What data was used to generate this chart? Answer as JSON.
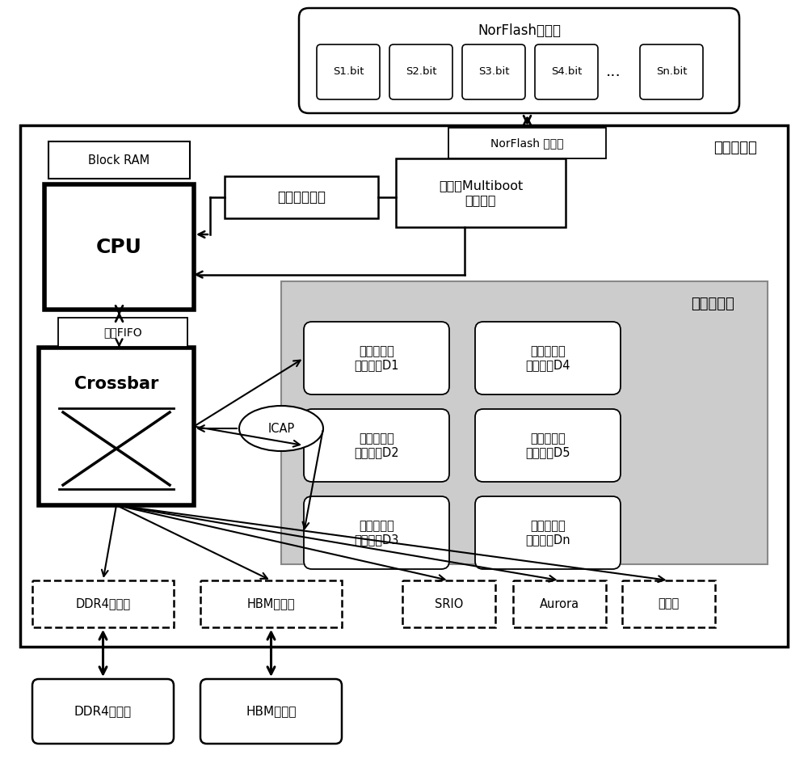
{
  "bg_color": "#ffffff",
  "norflash_storage_label": "NorFlash存储器",
  "norflash_items": [
    "S1.bit",
    "S2.bit",
    "S3.bit",
    "S4.bit",
    "Sn.bit"
  ],
  "static_label": "静态逻辑区",
  "dynamic_label": "动态逻辑区",
  "cpu_label": "CPU",
  "crossbar_label": "Crossbar",
  "blockram_label": "Block RAM",
  "async_fifo_label": "异步FIFO",
  "icap_label": "ICAP",
  "norflash_ctrl_label": "NorFlash 控制器",
  "clock_unit_label": "动态时钟单元",
  "multiboot_label": "静态区Multiboot\n控制单元",
  "ddr4_ctrl_label": "DDR4控制器",
  "hbm_ctrl_label": "HBM控制器",
  "srio_label": "SRIO",
  "aurora_label": "Aurora",
  "ethernet_label": "以太网",
  "ddr4_mem_label": "DDR4存储器",
  "hbm_mem_label": "HBM存储器",
  "dynamic_modules": [
    "用户自定义\n逻辑模块D1",
    "用户自定义\n逻辑模块D2",
    "用户自定义\n逻辑模块D3",
    "用户自定义\n逻辑模块D4",
    "用户自定义\n逻辑模块D5",
    "用户自定义\n逻辑模块Dn"
  ]
}
